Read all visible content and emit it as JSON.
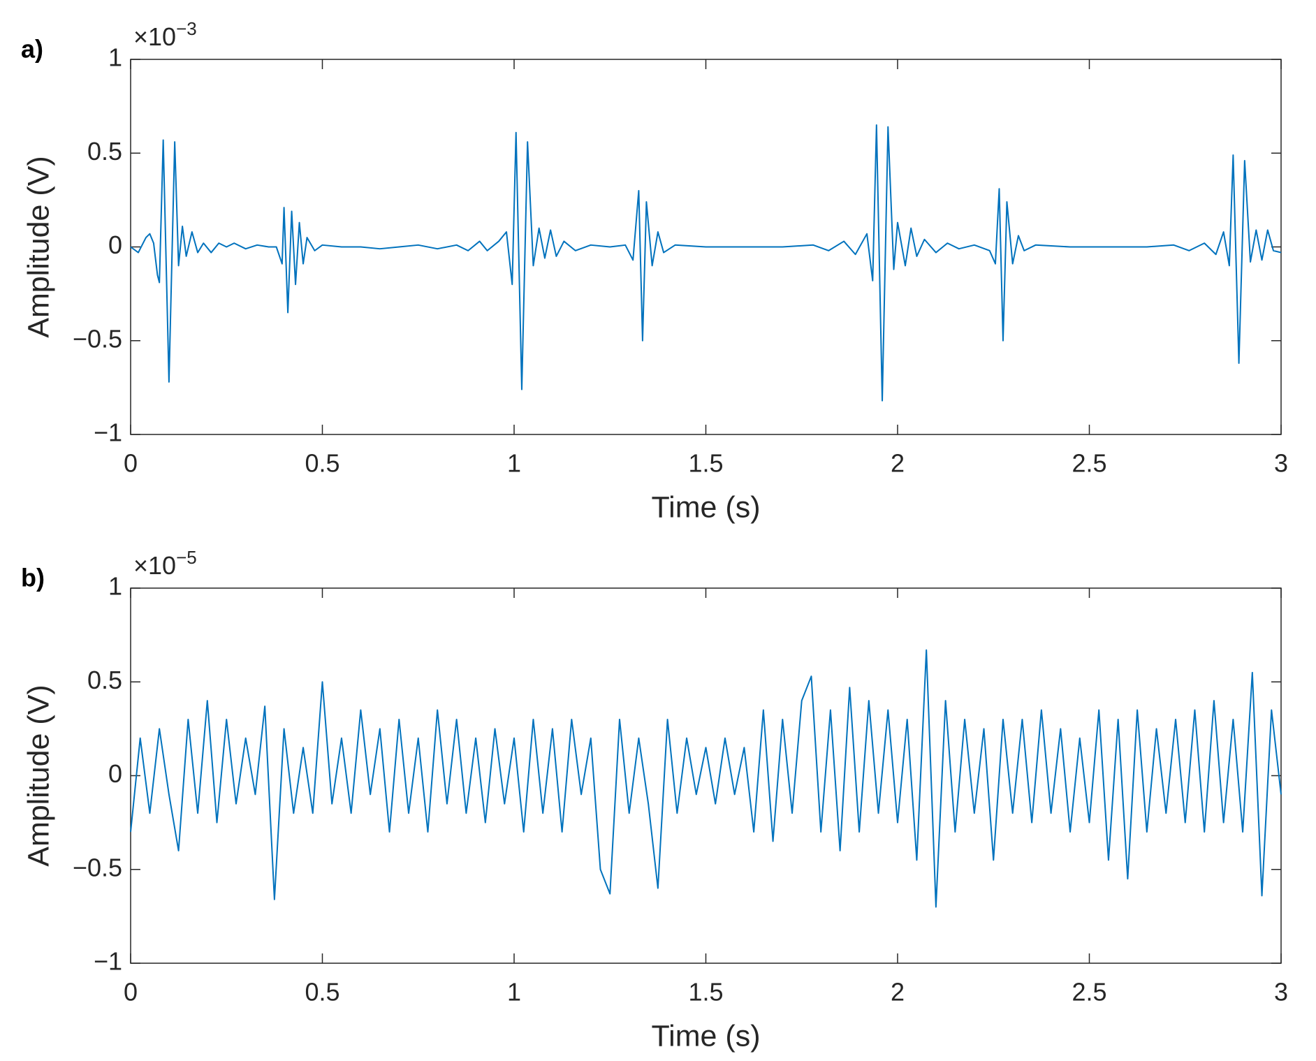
{
  "chart_data": [
    {
      "type": "line",
      "panel_label": "a)",
      "xlabel": "Time (s)",
      "ylabel": "Amplitude (V)",
      "y_multiplier": {
        "base": "×10",
        "exponent": "−3"
      },
      "color": "#0072bd",
      "xlim": [
        0,
        3
      ],
      "xticks": [
        0,
        0.5,
        1,
        1.5,
        2,
        2.5,
        3
      ],
      "ylim": [
        -1,
        1
      ],
      "yticks": [
        {
          "value": -1,
          "label": "−1"
        },
        {
          "value": -0.5,
          "label": "−0.5"
        },
        0,
        0.5,
        1
      ],
      "x": [
        0,
        0.02,
        0.04,
        0.05,
        0.06,
        0.07,
        0.075,
        0.085,
        0.1,
        0.115,
        0.125,
        0.135,
        0.145,
        0.16,
        0.175,
        0.19,
        0.21,
        0.23,
        0.25,
        0.27,
        0.3,
        0.33,
        0.36,
        0.38,
        0.395,
        0.4,
        0.41,
        0.42,
        0.43,
        0.44,
        0.45,
        0.46,
        0.48,
        0.5,
        0.55,
        0.6,
        0.65,
        0.7,
        0.75,
        0.8,
        0.85,
        0.88,
        0.91,
        0.93,
        0.96,
        0.98,
        0.995,
        1.005,
        1.02,
        1.035,
        1.05,
        1.065,
        1.08,
        1.095,
        1.11,
        1.13,
        1.16,
        1.2,
        1.25,
        1.29,
        1.31,
        1.325,
        1.335,
        1.345,
        1.36,
        1.375,
        1.39,
        1.42,
        1.5,
        1.6,
        1.7,
        1.78,
        1.82,
        1.86,
        1.89,
        1.92,
        1.935,
        1.945,
        1.96,
        1.975,
        1.99,
        2.0,
        2.02,
        2.035,
        2.05,
        2.07,
        2.1,
        2.13,
        2.16,
        2.2,
        2.24,
        2.255,
        2.265,
        2.275,
        2.285,
        2.3,
        2.315,
        2.33,
        2.36,
        2.45,
        2.55,
        2.65,
        2.72,
        2.76,
        2.8,
        2.83,
        2.85,
        2.865,
        2.875,
        2.89,
        2.905,
        2.92,
        2.935,
        2.95,
        2.965,
        2.98,
        3.0
      ],
      "values": [
        0,
        -0.03,
        0.05,
        0.07,
        0.02,
        -0.15,
        -0.19,
        0.57,
        -0.72,
        0.56,
        -0.1,
        0.11,
        -0.05,
        0.08,
        -0.03,
        0.02,
        -0.03,
        0.02,
        0,
        0.02,
        -0.01,
        0.01,
        0,
        0,
        -0.09,
        0.21,
        -0.35,
        0.19,
        -0.2,
        0.13,
        -0.09,
        0.05,
        -0.02,
        0.01,
        0,
        0,
        -0.01,
        0,
        0.01,
        -0.01,
        0.01,
        -0.02,
        0.03,
        -0.02,
        0.03,
        0.08,
        -0.2,
        0.61,
        -0.76,
        0.56,
        -0.1,
        0.1,
        -0.06,
        0.09,
        -0.05,
        0.03,
        -0.02,
        0.01,
        0,
        0.01,
        -0.07,
        0.3,
        -0.5,
        0.24,
        -0.1,
        0.08,
        -0.03,
        0.01,
        0,
        0,
        0,
        0.01,
        -0.02,
        0.03,
        -0.04,
        0.07,
        -0.18,
        0.65,
        -0.82,
        0.64,
        -0.12,
        0.13,
        -0.1,
        0.1,
        -0.05,
        0.04,
        -0.03,
        0.02,
        -0.01,
        0.01,
        -0.02,
        -0.09,
        0.31,
        -0.5,
        0.24,
        -0.09,
        0.06,
        -0.02,
        0.01,
        0,
        0,
        0,
        0.01,
        -0.02,
        0.02,
        -0.04,
        0.08,
        -0.1,
        0.49,
        -0.62,
        0.46,
        -0.08,
        0.09,
        -0.07,
        0.09,
        -0.02,
        -0.03
      ]
    },
    {
      "type": "line",
      "panel_label": "b)",
      "xlabel": "Time (s)",
      "ylabel": "Amplitude (V)",
      "y_multiplier": {
        "base": "×10",
        "exponent": "−5"
      },
      "color": "#0072bd",
      "xlim": [
        0,
        3
      ],
      "xticks": [
        0,
        0.5,
        1,
        1.5,
        2,
        2.5,
        3
      ],
      "ylim": [
        -1,
        1
      ],
      "yticks": [
        {
          "value": -1,
          "label": "−1"
        },
        {
          "value": -0.5,
          "label": "−0.5"
        },
        0,
        0.5,
        1
      ],
      "x": [
        0,
        0.025,
        0.05,
        0.075,
        0.1,
        0.125,
        0.15,
        0.175,
        0.2,
        0.225,
        0.25,
        0.275,
        0.3,
        0.325,
        0.35,
        0.375,
        0.4,
        0.425,
        0.45,
        0.475,
        0.5,
        0.525,
        0.55,
        0.575,
        0.6,
        0.625,
        0.65,
        0.675,
        0.7,
        0.725,
        0.75,
        0.775,
        0.8,
        0.825,
        0.85,
        0.875,
        0.9,
        0.925,
        0.95,
        0.975,
        1,
        1.025,
        1.05,
        1.075,
        1.1,
        1.125,
        1.15,
        1.175,
        1.2,
        1.225,
        1.25,
        1.275,
        1.3,
        1.325,
        1.35,
        1.375,
        1.4,
        1.425,
        1.45,
        1.475,
        1.5,
        1.525,
        1.55,
        1.575,
        1.6,
        1.625,
        1.65,
        1.675,
        1.7,
        1.725,
        1.75,
        1.775,
        1.8,
        1.825,
        1.85,
        1.875,
        1.9,
        1.925,
        1.95,
        1.975,
        2,
        2.025,
        2.05,
        2.075,
        2.1,
        2.125,
        2.15,
        2.175,
        2.2,
        2.225,
        2.25,
        2.275,
        2.3,
        2.325,
        2.35,
        2.375,
        2.4,
        2.425,
        2.45,
        2.475,
        2.5,
        2.525,
        2.55,
        2.575,
        2.6,
        2.625,
        2.65,
        2.675,
        2.7,
        2.725,
        2.75,
        2.775,
        2.8,
        2.825,
        2.85,
        2.875,
        2.9,
        2.925,
        2.95,
        2.975,
        3
      ],
      "values": [
        -0.3,
        0.2,
        -0.2,
        0.25,
        -0.1,
        -0.4,
        0.3,
        -0.2,
        0.4,
        -0.25,
        0.3,
        -0.15,
        0.2,
        -0.1,
        0.37,
        -0.66,
        0.25,
        -0.2,
        0.15,
        -0.2,
        0.5,
        -0.15,
        0.2,
        -0.2,
        0.35,
        -0.1,
        0.25,
        -0.3,
        0.3,
        -0.2,
        0.2,
        -0.3,
        0.35,
        -0.15,
        0.3,
        -0.2,
        0.2,
        -0.25,
        0.25,
        -0.15,
        0.2,
        -0.3,
        0.3,
        -0.2,
        0.25,
        -0.3,
        0.3,
        -0.1,
        0.2,
        -0.5,
        -0.63,
        0.3,
        -0.2,
        0.2,
        -0.15,
        -0.6,
        0.3,
        -0.2,
        0.2,
        -0.1,
        0.15,
        -0.15,
        0.2,
        -0.1,
        0.15,
        -0.3,
        0.35,
        -0.35,
        0.3,
        -0.2,
        0.4,
        0.53,
        -0.3,
        0.35,
        -0.4,
        0.47,
        -0.3,
        0.4,
        -0.2,
        0.35,
        -0.25,
        0.3,
        -0.45,
        0.67,
        -0.7,
        0.4,
        -0.3,
        0.3,
        -0.2,
        0.25,
        -0.45,
        0.3,
        -0.2,
        0.3,
        -0.25,
        0.35,
        -0.2,
        0.25,
        -0.3,
        0.2,
        -0.25,
        0.35,
        -0.45,
        0.3,
        -0.55,
        0.35,
        -0.3,
        0.25,
        -0.2,
        0.3,
        -0.25,
        0.35,
        -0.3,
        0.4,
        -0.25,
        0.3,
        -0.3,
        0.55,
        -0.64,
        0.35,
        -0.1
      ]
    }
  ]
}
